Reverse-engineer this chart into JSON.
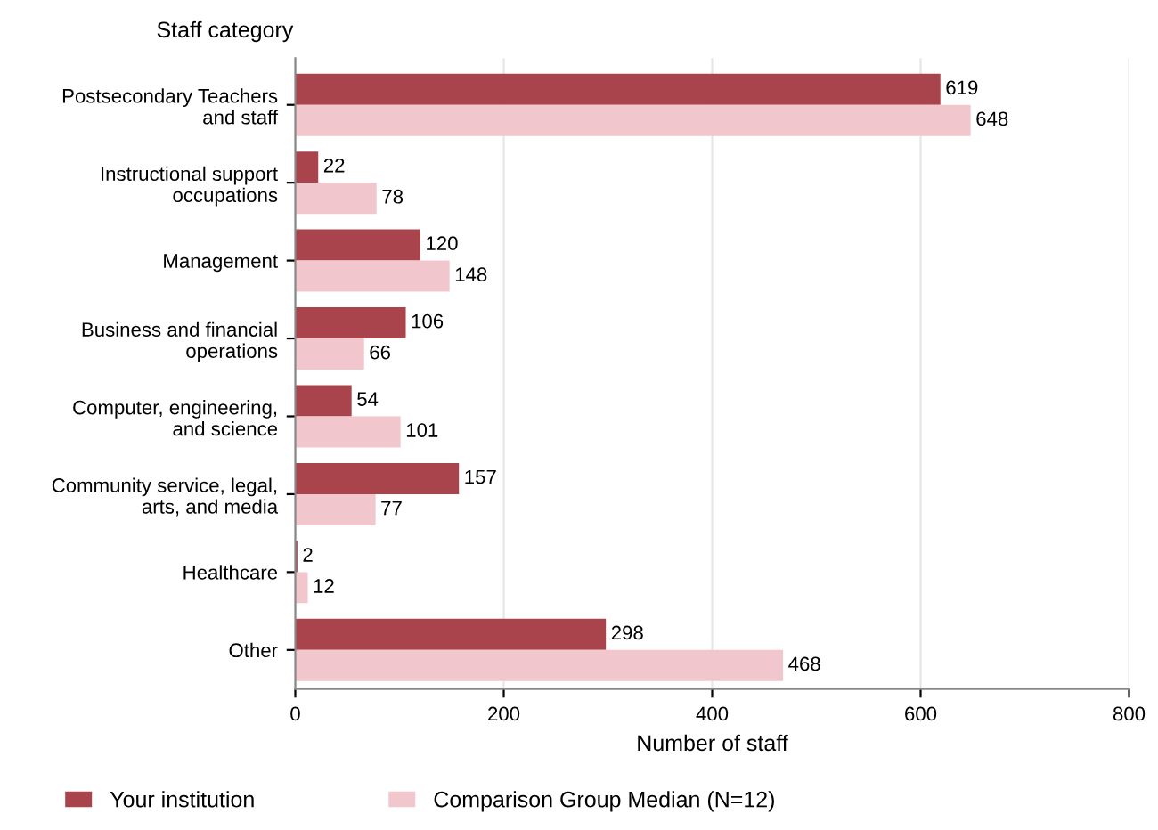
{
  "chart_data": {
    "type": "bar",
    "orientation": "horizontal",
    "ylabel": "Staff category",
    "xlabel": "Number of staff",
    "categories": [
      "Postsecondary Teachers\nand staff",
      "Instructional support\noccupations",
      "Management",
      "Business and financial\noperations",
      "Computer, engineering,\nand science",
      "Community service, legal,\narts, and media",
      "Healthcare",
      "Other"
    ],
    "series": [
      {
        "name": "Your institution",
        "color": "#a9434c",
        "values": [
          619,
          22,
          120,
          106,
          54,
          157,
          2,
          298
        ]
      },
      {
        "name": "Comparison Group Median (N=12)",
        "color": "#f2c6cd",
        "values": [
          648,
          78,
          148,
          66,
          101,
          77,
          12,
          468
        ]
      }
    ],
    "xlim": [
      0,
      800
    ],
    "xticks": [
      0,
      200,
      400,
      600,
      800
    ],
    "grid": "x",
    "legend": "bottom",
    "data_labels": true
  }
}
